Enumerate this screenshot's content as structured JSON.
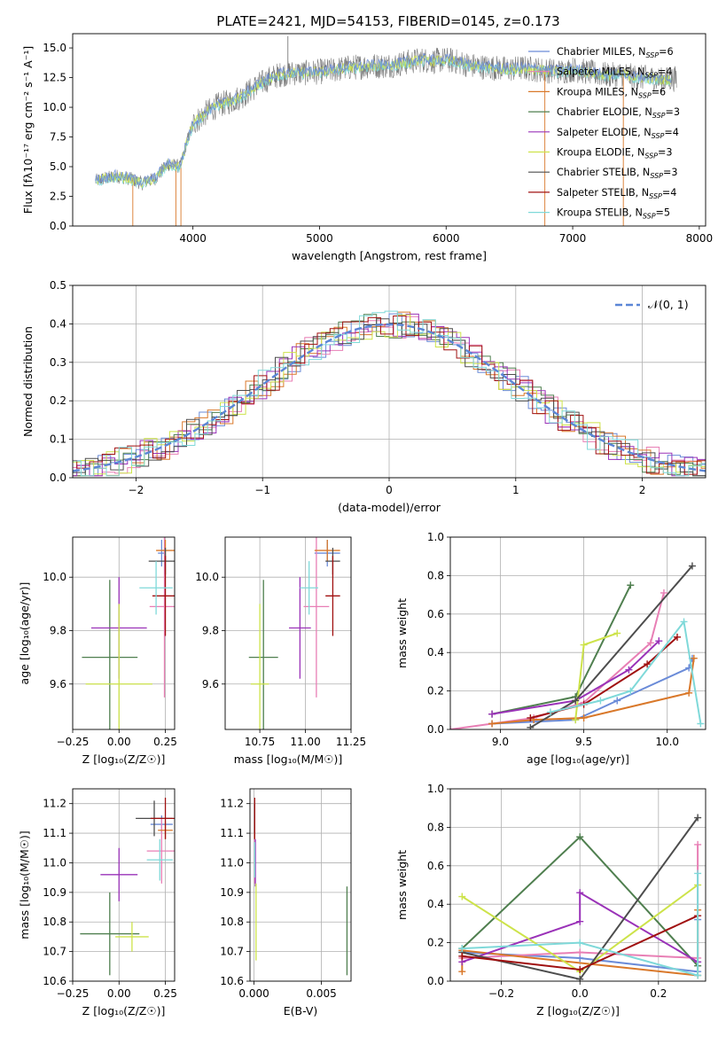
{
  "figure": {
    "title": "PLATE=2421, MJD=54153, FIBERID=0145, z=0.173"
  },
  "colors": {
    "chabrier_miles": "#6a8bd8",
    "salpeter_miles": "#e87fb5",
    "kroupa_miles": "#d9782a",
    "chabrier_elodie": "#4f7f4f",
    "salpeter_elodie": "#9a32b8",
    "kroupa_elodie": "#cde34a",
    "chabrier_stelib": "#4d4d4d",
    "salpeter_stelib": "#a01010",
    "kroupa_stelib": "#7fd9d9",
    "normal_curve": "#5b86d6",
    "grid": "#b0b0b0",
    "spectrum_gray": "#7a7a7a"
  },
  "chart_data": [
    {
      "id": "spectrum",
      "type": "line",
      "xlabel": "wavelength [Angstrom, rest frame]",
      "ylabel": "Flux [fλ10⁻¹⁷ erg cm⁻² s⁻¹ A⁻¹]",
      "xlim": [
        3050,
        8050
      ],
      "ylim": [
        0,
        16.2
      ],
      "xticks": [
        "4000",
        "5000",
        "6000",
        "7000",
        "8000"
      ],
      "xtick_values": [
        4000,
        5000,
        6000,
        7000,
        8000
      ],
      "yticks": [
        "0.0",
        "2.5",
        "5.0",
        "7.5",
        "10.0",
        "12.5",
        "15.0"
      ],
      "ytick_values": [
        0,
        2.5,
        5,
        7.5,
        10,
        12.5,
        15
      ],
      "grid": false,
      "legend_position": "top-right",
      "legend": [
        {
          "label": "Chabrier MILES, N",
          "sub": "SSP",
          "tail": "=6",
          "color_key": "chabrier_miles"
        },
        {
          "label": "Salpeter MILES, N",
          "sub": "SSP",
          "tail": "=4",
          "color_key": "salpeter_miles"
        },
        {
          "label": "Kroupa MILES, N",
          "sub": "SSP",
          "tail": "=6",
          "color_key": "kroupa_miles"
        },
        {
          "label": "Chabrier ELODIE, N",
          "sub": "SSP",
          "tail": "=3",
          "color_key": "chabrier_elodie"
        },
        {
          "label": "Salpeter ELODIE, N",
          "sub": "SSP",
          "tail": "=4",
          "color_key": "salpeter_elodie"
        },
        {
          "label": "Kroupa ELODIE, N",
          "sub": "SSP",
          "tail": "=3",
          "color_key": "kroupa_elodie"
        },
        {
          "label": "Chabrier STELIB, N",
          "sub": "SSP",
          "tail": "=3",
          "color_key": "chabrier_stelib"
        },
        {
          "label": "Salpeter STELIB, N",
          "sub": "SSP",
          "tail": "=4",
          "color_key": "salpeter_stelib"
        },
        {
          "label": "Kroupa STELIB, N",
          "sub": "SSP",
          "tail": "=5",
          "color_key": "kroupa_stelib"
        }
      ],
      "continuum": {
        "x": [
          3230,
          3300,
          3400,
          3500,
          3600,
          3700,
          3800,
          3900,
          3950,
          4000,
          4100,
          4200,
          4300,
          4400,
          4500,
          4600,
          4700,
          4800,
          4900,
          5000,
          5100,
          5200,
          5300,
          5400,
          5500,
          5600,
          5700,
          5800,
          5900,
          6000,
          6100,
          6200,
          6300,
          6400,
          6500,
          6600,
          6700,
          6800,
          6900,
          7000,
          7100,
          7200,
          7300,
          7400,
          7500,
          7600,
          7700,
          7800
        ],
        "y": [
          3.8,
          4.0,
          4.2,
          4.0,
          3.6,
          4.0,
          5.2,
          5.0,
          7.0,
          8.6,
          9.5,
          10.2,
          10.5,
          11.0,
          11.8,
          12.4,
          12.8,
          12.9,
          12.9,
          13.0,
          13.1,
          13.3,
          13.4,
          13.5,
          13.5,
          13.6,
          13.8,
          14.0,
          13.9,
          14.0,
          13.8,
          13.5,
          13.4,
          13.3,
          13.2,
          13.3,
          13.2,
          13.1,
          13.0,
          13.2,
          13.0,
          12.8,
          12.7,
          12.8,
          12.5,
          12.5,
          12.3,
          12.4
        ]
      },
      "spikes": [
        {
          "x": 3525,
          "y": 0
        },
        {
          "x": 3865,
          "y": 0
        },
        {
          "x": 3905,
          "y": 0
        },
        {
          "x": 4750,
          "y": 16.0
        },
        {
          "x": 6780,
          "y": 0
        },
        {
          "x": 7400,
          "y": 0
        }
      ]
    },
    {
      "id": "residuals",
      "type": "histogram",
      "xlabel": "(data-model)/error",
      "ylabel": "Normed distribution",
      "xlim": [
        -2.5,
        2.5
      ],
      "ylim": [
        0,
        0.5
      ],
      "xticks": [
        "−2",
        "−1",
        "0",
        "1",
        "2"
      ],
      "xtick_values": [
        -2,
        -1,
        0,
        1,
        2
      ],
      "yticks": [
        "0.0",
        "0.1",
        "0.2",
        "0.3",
        "0.4",
        "0.5"
      ],
      "ytick_values": [
        0,
        0.1,
        0.2,
        0.3,
        0.4,
        0.5
      ],
      "grid": true,
      "legend_position": "top-right",
      "legend_label": "𝒩(0, 1)",
      "bin_width": 0.1
    },
    {
      "id": "age-vs-z",
      "type": "errorbar",
      "xlabel": "Z [log₁₀(Z/Z☉)]",
      "ylabel": "age  [log₁₀(age/yr)]",
      "xlim": [
        -0.25,
        0.3
      ],
      "ylim": [
        9.43,
        10.15
      ],
      "xticks": [
        "−0.25",
        "0.00",
        "0.25"
      ],
      "xtick_values": [
        -0.25,
        0,
        0.25
      ],
      "yticks": [
        "9.6",
        "9.8",
        "10.0"
      ],
      "ytick_values": [
        9.6,
        9.8,
        10.0
      ],
      "grid": true,
      "points": [
        {
          "x": 0.23,
          "y": 10.09,
          "xerr": 0.02,
          "yerr": 0.05,
          "c": "chabrier_miles"
        },
        {
          "x": 0.245,
          "y": 9.89,
          "xerr": 0.08,
          "yerr": 0.34,
          "c": "salpeter_miles"
        },
        {
          "x": 0.25,
          "y": 10.1,
          "xerr": 0.05,
          "yerr": 0.04,
          "c": "kroupa_miles"
        },
        {
          "x": -0.05,
          "y": 9.7,
          "xerr": 0.15,
          "yerr": 0.29,
          "c": "chabrier_elodie"
        },
        {
          "x": 0.0,
          "y": 9.81,
          "xerr": 0.15,
          "yerr": 0.19,
          "c": "salpeter_elodie"
        },
        {
          "x": 0.0,
          "y": 9.6,
          "xerr": 0.18,
          "yerr": 0.3,
          "c": "kroupa_elodie"
        },
        {
          "x": 0.25,
          "y": 10.06,
          "xerr": 0.09,
          "yerr": 0.05,
          "c": "chabrier_stelib"
        },
        {
          "x": 0.25,
          "y": 9.93,
          "xerr": 0.07,
          "yerr": 0.15,
          "c": "salpeter_stelib"
        },
        {
          "x": 0.2,
          "y": 9.96,
          "xerr": 0.09,
          "yerr": 0.1,
          "c": "kroupa_stelib"
        }
      ]
    },
    {
      "id": "age-vs-mass",
      "type": "errorbar",
      "xlabel": "mass [log₁₀(M/M☉)]",
      "ylabel": "",
      "xlim": [
        10.56,
        11.25
      ],
      "ylim": [
        9.43,
        10.15
      ],
      "xticks": [
        "10.75",
        "11.00",
        "11.25"
      ],
      "xtick_values": [
        10.75,
        11.0,
        11.25
      ],
      "yticks": [
        "9.6",
        "9.8",
        "10.0"
      ],
      "ytick_values": [
        9.6,
        9.8,
        10.0
      ],
      "grid": true,
      "points": [
        {
          "x": 11.12,
          "y": 10.09,
          "xerr": 0.07,
          "yerr": 0.05,
          "c": "chabrier_miles"
        },
        {
          "x": 11.06,
          "y": 9.89,
          "xerr": 0.07,
          "yerr": 0.34,
          "c": "salpeter_miles"
        },
        {
          "x": 11.12,
          "y": 10.1,
          "xerr": 0.07,
          "yerr": 0.04,
          "c": "kroupa_miles"
        },
        {
          "x": 10.77,
          "y": 9.7,
          "xerr": 0.08,
          "yerr": 0.29,
          "c": "chabrier_elodie"
        },
        {
          "x": 10.97,
          "y": 9.81,
          "xerr": 0.06,
          "yerr": 0.19,
          "c": "salpeter_elodie"
        },
        {
          "x": 10.75,
          "y": 9.6,
          "xerr": 0.05,
          "yerr": 0.3,
          "c": "kroupa_elodie"
        },
        {
          "x": 11.15,
          "y": 10.06,
          "xerr": 0.04,
          "yerr": 0.05,
          "c": "chabrier_stelib"
        },
        {
          "x": 11.15,
          "y": 9.93,
          "xerr": 0.04,
          "yerr": 0.15,
          "c": "salpeter_stelib"
        },
        {
          "x": 11.02,
          "y": 9.96,
          "xerr": 0.05,
          "yerr": 0.1,
          "c": "kroupa_stelib"
        }
      ]
    },
    {
      "id": "weight-vs-age",
      "type": "line",
      "xlabel": "age  [log₁₀(age/yr)]",
      "ylabel": "mass weight",
      "xlim": [
        8.7,
        10.23
      ],
      "ylim": [
        0,
        1.0
      ],
      "xticks": [
        "9.0",
        "9.5",
        "10.0"
      ],
      "xtick_values": [
        9.0,
        9.5,
        10.0
      ],
      "yticks": [
        "0.0",
        "0.2",
        "0.4",
        "0.6",
        "0.8",
        "1.0"
      ],
      "ytick_values": [
        0,
        0.2,
        0.4,
        0.6,
        0.8,
        1.0
      ],
      "grid": true,
      "series": [
        {
          "c": "chabrier_miles",
          "x": [
            8.95,
            9.45,
            9.7,
            10.13,
            10.15
          ],
          "y": [
            0.03,
            0.05,
            0.15,
            0.32,
            0.37
          ]
        },
        {
          "c": "salpeter_miles",
          "x": [
            8.7,
            9.2,
            9.5,
            9.9,
            9.98
          ],
          "y": [
            0.0,
            0.06,
            0.14,
            0.45,
            0.71
          ]
        },
        {
          "c": "kroupa_miles",
          "x": [
            8.95,
            9.2,
            9.5,
            10.13,
            10.16
          ],
          "y": [
            0.03,
            0.05,
            0.06,
            0.19,
            0.37
          ]
        },
        {
          "c": "chabrier_elodie",
          "x": [
            8.95,
            9.45,
            9.78
          ],
          "y": [
            0.08,
            0.17,
            0.75
          ]
        },
        {
          "c": "salpeter_elodie",
          "x": [
            8.95,
            9.45,
            9.77,
            9.95
          ],
          "y": [
            0.08,
            0.15,
            0.31,
            0.46
          ]
        },
        {
          "c": "kroupa_elodie",
          "x": [
            9.45,
            9.5,
            9.7
          ],
          "y": [
            0.05,
            0.44,
            0.5
          ]
        },
        {
          "c": "chabrier_stelib",
          "x": [
            9.18,
            9.45,
            10.15
          ],
          "y": [
            0.01,
            0.15,
            0.85
          ]
        },
        {
          "c": "salpeter_stelib",
          "x": [
            9.18,
            9.5,
            9.88,
            10.06
          ],
          "y": [
            0.06,
            0.13,
            0.34,
            0.48
          ]
        },
        {
          "c": "kroupa_stelib",
          "x": [
            9.3,
            9.6,
            9.78,
            10.1,
            10.2
          ],
          "y": [
            0.09,
            0.15,
            0.2,
            0.56,
            0.03
          ]
        }
      ]
    },
    {
      "id": "mass-vs-z",
      "type": "errorbar",
      "xlabel": "Z [log₁₀(Z/Z☉)]",
      "ylabel": "mass [log₁₀(M/M☉)]",
      "xlim": [
        -0.25,
        0.3
      ],
      "ylim": [
        10.6,
        11.25
      ],
      "xticks": [
        "−0.25",
        "0.00",
        "0.25"
      ],
      "xtick_values": [
        -0.25,
        0,
        0.25
      ],
      "yticks": [
        "10.6",
        "10.7",
        "10.8",
        "10.9",
        "11.0",
        "11.1",
        "11.2"
      ],
      "ytick_values": [
        10.6,
        10.7,
        10.8,
        10.9,
        11.0,
        11.1,
        11.2
      ],
      "grid": true,
      "points": [
        {
          "x": 0.23,
          "y": 11.13,
          "xerr": 0.06,
          "yerr": 0.03,
          "c": "chabrier_miles"
        },
        {
          "x": 0.23,
          "y": 11.04,
          "xerr": 0.08,
          "yerr": 0.11,
          "c": "salpeter_miles"
        },
        {
          "x": 0.25,
          "y": 11.11,
          "xerr": 0.04,
          "yerr": 0.03,
          "c": "kroupa_miles"
        },
        {
          "x": -0.05,
          "y": 10.76,
          "xerr": 0.16,
          "yerr": 0.14,
          "c": "chabrier_elodie"
        },
        {
          "x": 0.0,
          "y": 10.96,
          "xerr": 0.1,
          "yerr": 0.09,
          "c": "salpeter_elodie"
        },
        {
          "x": 0.07,
          "y": 10.75,
          "xerr": 0.09,
          "yerr": 0.05,
          "c": "kroupa_elodie"
        },
        {
          "x": 0.19,
          "y": 11.15,
          "xerr": 0.1,
          "yerr": 0.06,
          "c": "chabrier_stelib"
        },
        {
          "x": 0.25,
          "y": 11.15,
          "xerr": 0.08,
          "yerr": 0.07,
          "c": "salpeter_stelib"
        },
        {
          "x": 0.22,
          "y": 11.01,
          "xerr": 0.07,
          "yerr": 0.07,
          "c": "kroupa_stelib"
        }
      ]
    },
    {
      "id": "mass-vs-ebv",
      "type": "errorbar",
      "xlabel": "E(B-V)",
      "ylabel": "",
      "xlim": [
        -0.0003,
        0.0072
      ],
      "ylim": [
        10.6,
        11.25
      ],
      "xticks": [
        "0.000",
        "0.005"
      ],
      "xtick_values": [
        0,
        0.005
      ],
      "yticks": [
        "10.6",
        "10.7",
        "10.8",
        "10.9",
        "11.0",
        "11.1",
        "11.2"
      ],
      "ytick_values": [
        10.6,
        10.7,
        10.8,
        10.9,
        11.0,
        11.1,
        11.2
      ],
      "grid": true,
      "points": [
        {
          "x": 5e-05,
          "y": 11.13,
          "xerr": 0,
          "yerr": 0.03,
          "c": "chabrier_miles"
        },
        {
          "x": 5e-05,
          "y": 11.04,
          "xerr": 0,
          "yerr": 0.11,
          "c": "salpeter_miles"
        },
        {
          "x": 5e-05,
          "y": 11.11,
          "xerr": 0,
          "yerr": 0.03,
          "c": "kroupa_miles"
        },
        {
          "x": 0.0069,
          "y": 10.77,
          "xerr": 0,
          "yerr": 0.15,
          "c": "chabrier_elodie"
        },
        {
          "x": 0.0001,
          "y": 11.0,
          "xerr": 0,
          "yerr": 0.08,
          "c": "salpeter_elodie"
        },
        {
          "x": 0.00015,
          "y": 10.8,
          "xerr": 0,
          "yerr": 0.13,
          "c": "kroupa_elodie"
        },
        {
          "x": 5e-05,
          "y": 11.15,
          "xerr": 0,
          "yerr": 0.05,
          "c": "chabrier_stelib"
        },
        {
          "x": 5e-05,
          "y": 11.15,
          "xerr": 0,
          "yerr": 0.07,
          "c": "salpeter_stelib"
        },
        {
          "x": 5e-05,
          "y": 11.01,
          "xerr": 0,
          "yerr": 0.06,
          "c": "kroupa_stelib"
        }
      ]
    },
    {
      "id": "weight-vs-z",
      "type": "line",
      "xlabel": "Z [log₁₀(Z/Z☉)]",
      "ylabel": "mass weight",
      "xlim": [
        -0.33,
        0.32
      ],
      "ylim": [
        0,
        1.0
      ],
      "xticks": [
        "−0.2",
        "0.0",
        "0.2"
      ],
      "xtick_values": [
        -0.2,
        0,
        0.2
      ],
      "yticks": [
        "0.0",
        "0.2",
        "0.4",
        "0.6",
        "0.8",
        "1.0"
      ],
      "ytick_values": [
        0,
        0.2,
        0.4,
        0.6,
        0.8,
        1.0
      ],
      "grid": true,
      "series": [
        {
          "c": "chabrier_miles",
          "x": [
            -0.3,
            0.0,
            0.3,
            0.3
          ],
          "y": [
            0.15,
            0.12,
            0.05,
            0.32
          ]
        },
        {
          "c": "salpeter_miles",
          "x": [
            -0.3,
            0.0,
            0.3,
            0.3
          ],
          "y": [
            0.12,
            0.15,
            0.12,
            0.71
          ]
        },
        {
          "c": "kroupa_miles",
          "x": [
            -0.3,
            -0.3,
            0.3,
            0.3
          ],
          "y": [
            0.05,
            0.16,
            0.03,
            0.37
          ]
        },
        {
          "c": "chabrier_elodie",
          "x": [
            -0.3,
            0.0,
            0.3
          ],
          "y": [
            0.17,
            0.75,
            0.08
          ]
        },
        {
          "c": "salpeter_elodie",
          "x": [
            -0.3,
            0.0,
            0.0,
            0.3
          ],
          "y": [
            0.1,
            0.31,
            0.46,
            0.1
          ]
        },
        {
          "c": "kroupa_elodie",
          "x": [
            -0.3,
            0.0,
            0.3
          ],
          "y": [
            0.44,
            0.05,
            0.5
          ]
        },
        {
          "c": "chabrier_stelib",
          "x": [
            -0.3,
            0.0,
            0.3
          ],
          "y": [
            0.15,
            0.01,
            0.85
          ]
        },
        {
          "c": "salpeter_stelib",
          "x": [
            -0.3,
            0.0,
            0.3
          ],
          "y": [
            0.13,
            0.06,
            0.34
          ]
        },
        {
          "c": "kroupa_stelib",
          "x": [
            -0.3,
            0.0,
            0.3,
            0.3
          ],
          "y": [
            0.17,
            0.2,
            0.03,
            0.56
          ]
        }
      ]
    }
  ]
}
